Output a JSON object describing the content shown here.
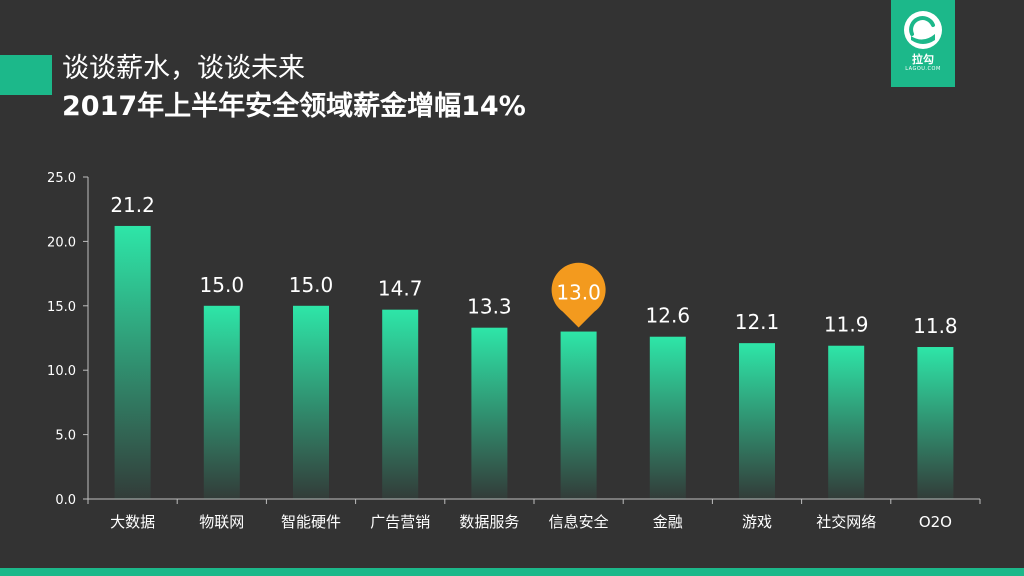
{
  "header": {
    "title_line1": "谈谈薪水，谈谈未来",
    "title_line2": "2017年上半年安全领域薪金增幅14%"
  },
  "logo": {
    "name": "拉勾",
    "sub": "LAGOU.COM"
  },
  "colors": {
    "background": "#333333",
    "accent": "#1cb88a",
    "bar_top": "#2ee6a8",
    "bar_bottom": "#333333",
    "highlight": "#f39a1e"
  },
  "chart_data": {
    "type": "bar",
    "categories": [
      "大数据",
      "物联网",
      "智能硬件",
      "广告营销",
      "数据服务",
      "信息安全",
      "金融",
      "游戏",
      "社交网络",
      "O2O"
    ],
    "values": [
      21.2,
      15.0,
      15.0,
      14.7,
      13.3,
      13.0,
      12.6,
      12.1,
      11.9,
      11.8
    ],
    "value_labels": [
      "21.2",
      "15.0",
      "15.0",
      "14.7",
      "13.3",
      "13.0",
      "12.6",
      "12.1",
      "11.9",
      "11.8"
    ],
    "yticks": [
      "0.0",
      "5.0",
      "10.0",
      "15.0",
      "20.0",
      "25.0"
    ],
    "ylim": [
      0,
      25
    ],
    "highlight_category": "信息安全",
    "grid": false,
    "legend": "none"
  }
}
